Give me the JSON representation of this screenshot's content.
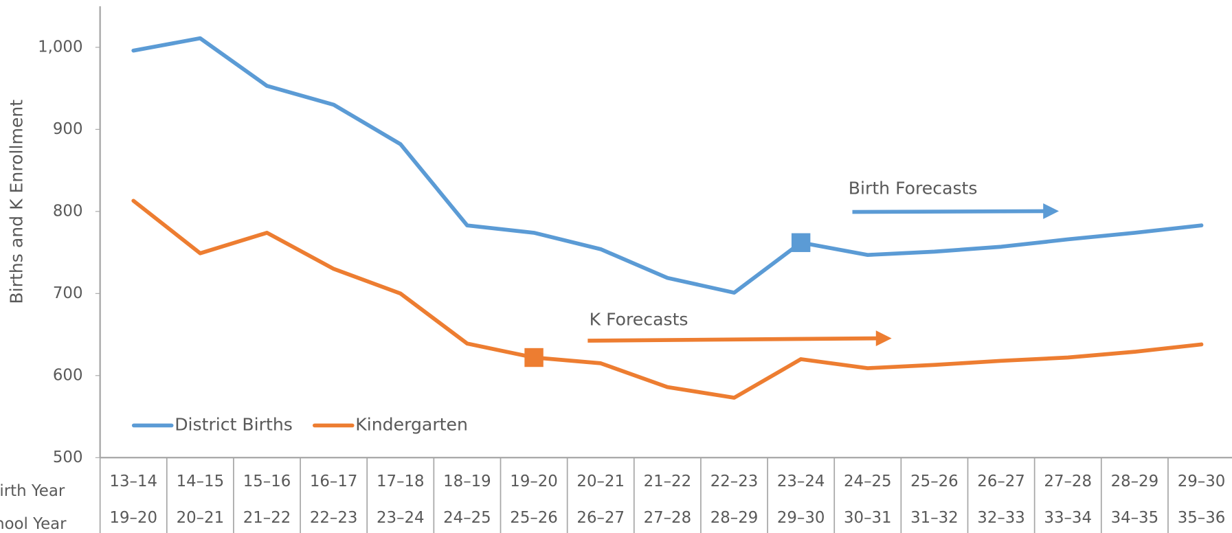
{
  "chart_data": {
    "type": "line",
    "y_label": "Births and K Enrollment",
    "categories": [
      "13–14",
      "14–15",
      "15–16",
      "16–17",
      "17–18",
      "18–19",
      "19–20",
      "20–21",
      "21–22",
      "22–23",
      "23–24",
      "24–25",
      "25–26",
      "26–27",
      "27–28",
      "28–29",
      "29–30"
    ],
    "school_years": [
      "19–20",
      "20–21",
      "21–22",
      "22–23",
      "23–24",
      "24–25",
      "25–26",
      "26–27",
      "27–28",
      "28–29",
      "29–30",
      "30–31",
      "31–32",
      "32–33",
      "33–34",
      "34–35",
      "35–36"
    ],
    "row_labels": [
      "Birth Year",
      "School Year"
    ],
    "series": [
      {
        "name": "District Births",
        "color": "#5b9bd5",
        "marker": 10,
        "values": [
          996,
          1011,
          953,
          930,
          882,
          783,
          774,
          754,
          719,
          701,
          762,
          747,
          751,
          757,
          766,
          774,
          783
        ]
      },
      {
        "name": "Kindergarten",
        "color": "#ed7d31",
        "marker": 6,
        "values": [
          813,
          749,
          774,
          730,
          700,
          639,
          622,
          615,
          586,
          573,
          620,
          609,
          613,
          618,
          622,
          629,
          638
        ]
      }
    ],
    "annotations": [
      "Birth Forecasts",
      "K Forecasts"
    ],
    "ylim": [
      500,
      1050
    ],
    "yticks": [
      500,
      600,
      700,
      800,
      900,
      {
        "value": 1000,
        "label": "1,000"
      }
    ],
    "grid": false,
    "legend": "lower left"
  }
}
